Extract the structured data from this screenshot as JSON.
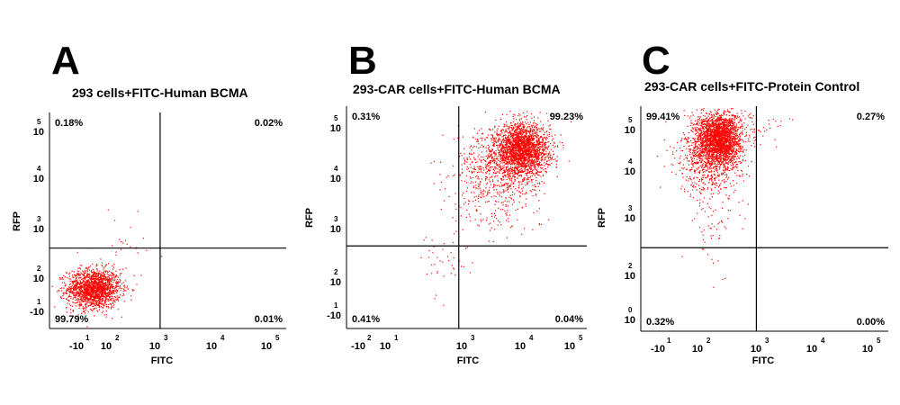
{
  "chart_data": [
    {
      "type": "scatter",
      "panel": "A",
      "title": "293 cells+FITC-Human BCMA",
      "xlabel": "FITC",
      "ylabel": "RFP",
      "x_ticks": [
        {
          "base": "-10",
          "exp": "1"
        },
        {
          "base": "10",
          "exp": "2"
        },
        {
          "base": "10",
          "exp": "3"
        },
        {
          "base": "10",
          "exp": "4"
        },
        {
          "base": "10",
          "exp": "5"
        }
      ],
      "y_ticks": [
        {
          "base": "-10",
          "exp": "1"
        },
        {
          "base": "10",
          "exp": "2"
        },
        {
          "base": "10",
          "exp": "3"
        },
        {
          "base": "10",
          "exp": "4"
        },
        {
          "base": "10",
          "exp": "5"
        }
      ],
      "quadrants": {
        "top_left": "0.18%",
        "top_right": "0.02%",
        "bottom_left": "99.79%",
        "bottom_right": "0.01%"
      },
      "gate": {
        "x": 2.6,
        "y": 2.1
      },
      "populations": [
        {
          "cx": 1.2,
          "cy": 1.2,
          "sx": 0.28,
          "sy": 0.22,
          "n": 1700
        },
        {
          "cx": 1.9,
          "cy": 2.1,
          "sx": 0.35,
          "sy": 0.35,
          "n": 25
        }
      ]
    },
    {
      "type": "scatter",
      "panel": "B",
      "title": "293-CAR cells+FITC-Human BCMA",
      "xlabel": "FITC",
      "ylabel": "RFP",
      "x_ticks": [
        {
          "base": "-10",
          "exp": "2"
        },
        {
          "base": "10",
          "exp": "1"
        },
        {
          "base": "10",
          "exp": "3"
        },
        {
          "base": "10",
          "exp": "4"
        },
        {
          "base": "10",
          "exp": "5"
        }
      ],
      "y_ticks": [
        {
          "base": "-10",
          "exp": "1"
        },
        {
          "base": "10",
          "exp": "2"
        },
        {
          "base": "10",
          "exp": "3"
        },
        {
          "base": "10",
          "exp": "4"
        },
        {
          "base": "10",
          "exp": "5"
        }
      ],
      "quadrants": {
        "top_left": "0.31%",
        "top_right": "99.23%",
        "bottom_left": "0.41%",
        "bottom_right": "0.04%"
      },
      "gate": {
        "x": 2.6,
        "y": 2.1
      },
      "populations": [
        {
          "cx": 3.9,
          "cy": 4.2,
          "sx": 0.28,
          "sy": 0.28,
          "n": 2200
        },
        {
          "cx": 3.4,
          "cy": 3.8,
          "sx": 0.45,
          "sy": 0.45,
          "n": 650
        },
        {
          "cx": 3.3,
          "cy": 2.9,
          "sx": 0.5,
          "sy": 0.4,
          "n": 90
        },
        {
          "cx": 2.3,
          "cy": 1.8,
          "sx": 0.25,
          "sy": 0.35,
          "n": 40
        }
      ]
    },
    {
      "type": "scatter",
      "panel": "C",
      "title": "293-CAR cells+FITC-Protein Control",
      "xlabel": "FITC",
      "ylabel": "RFP",
      "x_ticks": [
        {
          "base": "-10",
          "exp": "1"
        },
        {
          "base": "10",
          "exp": "2"
        },
        {
          "base": "10",
          "exp": "3"
        },
        {
          "base": "10",
          "exp": "4"
        },
        {
          "base": "10",
          "exp": "5"
        }
      ],
      "y_ticks": [
        {
          "base": "10",
          "exp": "0"
        },
        {
          "base": "10",
          "exp": "2"
        },
        {
          "base": "10",
          "exp": "3"
        },
        {
          "base": "10",
          "exp": "4"
        },
        {
          "base": "10",
          "exp": "5"
        }
      ],
      "quadrants": {
        "top_left": "99.41%",
        "top_right": "0.27%",
        "bottom_left": "0.32%",
        "bottom_right": "0.00%"
      },
      "gate": {
        "x": 2.6,
        "y": 2.1
      },
      "populations": [
        {
          "cx": 1.85,
          "cy": 4.45,
          "sx": 0.22,
          "sy": 0.28,
          "n": 2200
        },
        {
          "cx": 1.65,
          "cy": 4.05,
          "sx": 0.32,
          "sy": 0.4,
          "n": 700
        },
        {
          "cx": 1.75,
          "cy": 2.7,
          "sx": 0.2,
          "sy": 0.5,
          "n": 70
        },
        {
          "cx": 2.6,
          "cy": 4.6,
          "sx": 0.35,
          "sy": 0.2,
          "n": 40
        }
      ]
    }
  ],
  "colors": {
    "dot": "#ff0000",
    "axis": "#000000"
  }
}
